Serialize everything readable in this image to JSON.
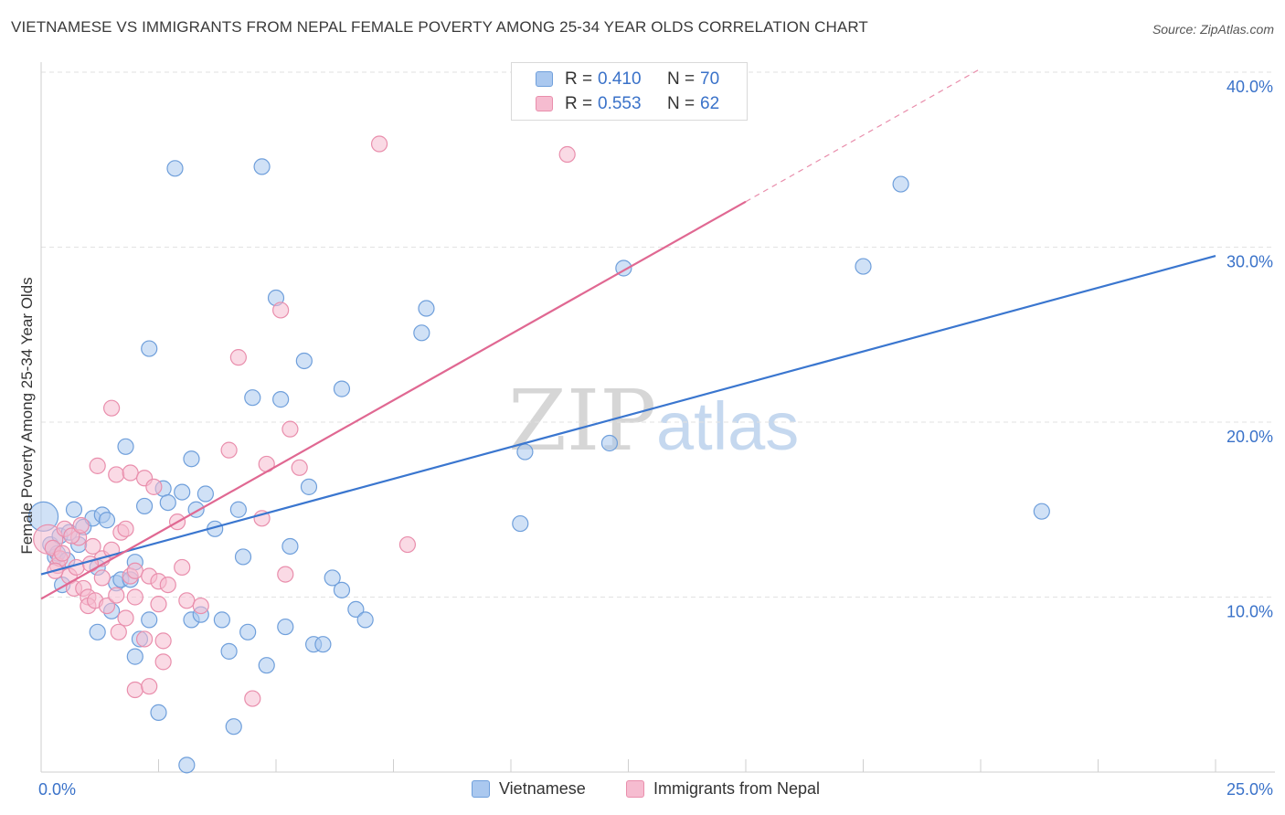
{
  "title": "VIETNAMESE VS IMMIGRANTS FROM NEPAL FEMALE POVERTY AMONG 25-34 YEAR OLDS CORRELATION CHART",
  "source": "Source: ZipAtlas.com",
  "watermark": {
    "zip": "ZIP",
    "atlas": "atlas"
  },
  "legend_top": [
    {
      "r_label": "R =",
      "r_value": "0.410",
      "n_label": "N =",
      "n_value": "70"
    },
    {
      "r_label": "R =",
      "r_value": "0.553",
      "n_label": "N =",
      "n_value": "62"
    }
  ],
  "legend_bottom": [
    {
      "label": "Vietnamese"
    },
    {
      "label": "Immigrants from Nepal"
    }
  ],
  "colors": {
    "blue_fill": "#aac8ef",
    "blue_stroke": "#6f9fdb",
    "blue_line": "#3a76cf",
    "pink_fill": "#f6bcd0",
    "pink_stroke": "#e98eac",
    "pink_line": "#e06892",
    "axis_text": "#3a72c9",
    "grid": "#e2e2e2"
  },
  "chart_data": {
    "type": "scatter",
    "title": "VIETNAMESE VS IMMIGRANTS FROM NEPAL FEMALE POVERTY AMONG 25-34 YEAR OLDS CORRELATION CHART",
    "xlabel": "",
    "ylabel": "Female Poverty Among 25-34 Year Olds",
    "xlim": [
      0,
      25
    ],
    "ylim": [
      0,
      40
    ],
    "x_tick_labels": [
      {
        "value": 0,
        "label": "0.0%"
      },
      {
        "value": 25,
        "label": "25.0%"
      }
    ],
    "y_tick_labels": [
      {
        "value": 10,
        "label": "10.0%"
      },
      {
        "value": 20,
        "label": "20.0%"
      },
      {
        "value": 30,
        "label": "30.0%"
      },
      {
        "value": 40,
        "label": "40.0%"
      }
    ],
    "x_minor_ticks": [
      0,
      2.5,
      5,
      7.5,
      10,
      12.5,
      15,
      17.5,
      20,
      22.5,
      25
    ],
    "grid": true,
    "series": [
      {
        "name": "Vietnamese",
        "color": "#aac8ef",
        "r": 0.41,
        "n": 70,
        "trend": {
          "x": [
            0,
            25
          ],
          "y": [
            11.3,
            29.5
          ],
          "dashed": false
        },
        "points": [
          [
            0.05,
            14.6
          ],
          [
            0.2,
            13.0
          ],
          [
            0.3,
            12.3
          ],
          [
            0.4,
            13.5
          ],
          [
            0.45,
            10.7
          ],
          [
            0.6,
            13.7
          ],
          [
            0.7,
            15.0
          ],
          [
            0.8,
            13.0
          ],
          [
            0.9,
            14.0
          ],
          [
            1.1,
            14.5
          ],
          [
            1.2,
            11.7
          ],
          [
            1.2,
            8.0
          ],
          [
            1.3,
            14.7
          ],
          [
            1.4,
            14.4
          ],
          [
            1.5,
            9.2
          ],
          [
            1.6,
            10.8
          ],
          [
            1.7,
            11.0
          ],
          [
            1.8,
            18.6
          ],
          [
            1.9,
            11.0
          ],
          [
            2.0,
            12.0
          ],
          [
            2.0,
            6.6
          ],
          [
            2.1,
            7.6
          ],
          [
            2.2,
            15.2
          ],
          [
            2.3,
            8.7
          ],
          [
            2.3,
            24.2
          ],
          [
            2.5,
            3.4
          ],
          [
            2.6,
            16.2
          ],
          [
            2.7,
            15.4
          ],
          [
            2.85,
            34.5
          ],
          [
            3.0,
            16.0
          ],
          [
            3.1,
            0.4
          ],
          [
            3.2,
            17.9
          ],
          [
            3.2,
            8.7
          ],
          [
            3.3,
            15.0
          ],
          [
            3.4,
            9.0
          ],
          [
            3.5,
            15.9
          ],
          [
            3.7,
            13.9
          ],
          [
            3.85,
            8.7
          ],
          [
            4.0,
            6.9
          ],
          [
            4.1,
            2.6
          ],
          [
            4.2,
            15.0
          ],
          [
            4.3,
            12.3
          ],
          [
            4.4,
            8.0
          ],
          [
            4.5,
            21.4
          ],
          [
            4.7,
            34.6
          ],
          [
            4.8,
            6.1
          ],
          [
            5.0,
            27.1
          ],
          [
            5.1,
            21.3
          ],
          [
            5.2,
            8.3
          ],
          [
            5.3,
            12.9
          ],
          [
            5.6,
            23.5
          ],
          [
            5.7,
            16.3
          ],
          [
            5.8,
            7.3
          ],
          [
            6.0,
            7.3
          ],
          [
            6.2,
            11.1
          ],
          [
            6.4,
            10.4
          ],
          [
            6.4,
            21.9
          ],
          [
            6.7,
            9.3
          ],
          [
            6.9,
            8.7
          ],
          [
            8.1,
            25.1
          ],
          [
            8.2,
            26.5
          ],
          [
            10.2,
            14.2
          ],
          [
            10.3,
            18.3
          ],
          [
            12.1,
            18.8
          ],
          [
            12.4,
            28.8
          ],
          [
            17.5,
            28.9
          ],
          [
            18.3,
            33.6
          ],
          [
            21.3,
            14.9
          ],
          [
            0.35,
            12.5
          ],
          [
            0.55,
            12.1
          ]
        ]
      },
      {
        "name": "Immigrants from Nepal",
        "color": "#f6bcd0",
        "r": 0.553,
        "n": 62,
        "trend": {
          "x": [
            0,
            15
          ],
          "y": [
            9.9,
            32.6
          ],
          "dashed": false
        },
        "trend_extension": {
          "x": [
            15,
            20
          ],
          "y": [
            32.6,
            40.2
          ],
          "dashed": true
        },
        "points": [
          [
            0.15,
            13.3
          ],
          [
            0.25,
            12.8
          ],
          [
            0.35,
            11.8
          ],
          [
            0.4,
            12.2
          ],
          [
            0.5,
            13.9
          ],
          [
            0.6,
            11.2
          ],
          [
            0.7,
            10.5
          ],
          [
            0.75,
            11.7
          ],
          [
            0.8,
            13.4
          ],
          [
            0.9,
            10.5
          ],
          [
            1.0,
            10.0
          ],
          [
            1.0,
            9.5
          ],
          [
            1.1,
            12.9
          ],
          [
            1.15,
            9.8
          ],
          [
            1.2,
            17.5
          ],
          [
            1.3,
            11.1
          ],
          [
            1.3,
            12.2
          ],
          [
            1.4,
            9.5
          ],
          [
            1.5,
            12.7
          ],
          [
            1.5,
            20.8
          ],
          [
            1.6,
            10.1
          ],
          [
            1.6,
            17.0
          ],
          [
            1.65,
            8.0
          ],
          [
            1.7,
            13.7
          ],
          [
            1.8,
            8.8
          ],
          [
            1.8,
            13.9
          ],
          [
            1.9,
            11.2
          ],
          [
            1.9,
            17.1
          ],
          [
            2.0,
            11.5
          ],
          [
            2.0,
            10.0
          ],
          [
            2.0,
            4.7
          ],
          [
            2.2,
            16.8
          ],
          [
            2.2,
            7.6
          ],
          [
            2.3,
            11.2
          ],
          [
            2.3,
            4.9
          ],
          [
            2.4,
            16.3
          ],
          [
            2.5,
            10.9
          ],
          [
            2.5,
            9.6
          ],
          [
            2.6,
            7.5
          ],
          [
            2.6,
            6.3
          ],
          [
            2.7,
            10.7
          ],
          [
            2.9,
            14.3
          ],
          [
            3.0,
            11.7
          ],
          [
            3.1,
            9.8
          ],
          [
            3.4,
            9.5
          ],
          [
            4.0,
            18.4
          ],
          [
            4.2,
            23.7
          ],
          [
            4.7,
            14.5
          ],
          [
            4.5,
            4.2
          ],
          [
            4.8,
            17.6
          ],
          [
            5.1,
            26.4
          ],
          [
            5.2,
            11.3
          ],
          [
            5.3,
            19.6
          ],
          [
            5.5,
            17.4
          ],
          [
            7.2,
            35.9
          ],
          [
            7.8,
            13.0
          ],
          [
            11.2,
            35.3
          ],
          [
            0.45,
            12.5
          ],
          [
            0.65,
            13.5
          ],
          [
            0.85,
            14.1
          ],
          [
            1.05,
            11.9
          ],
          [
            0.3,
            11.5
          ]
        ]
      }
    ]
  }
}
